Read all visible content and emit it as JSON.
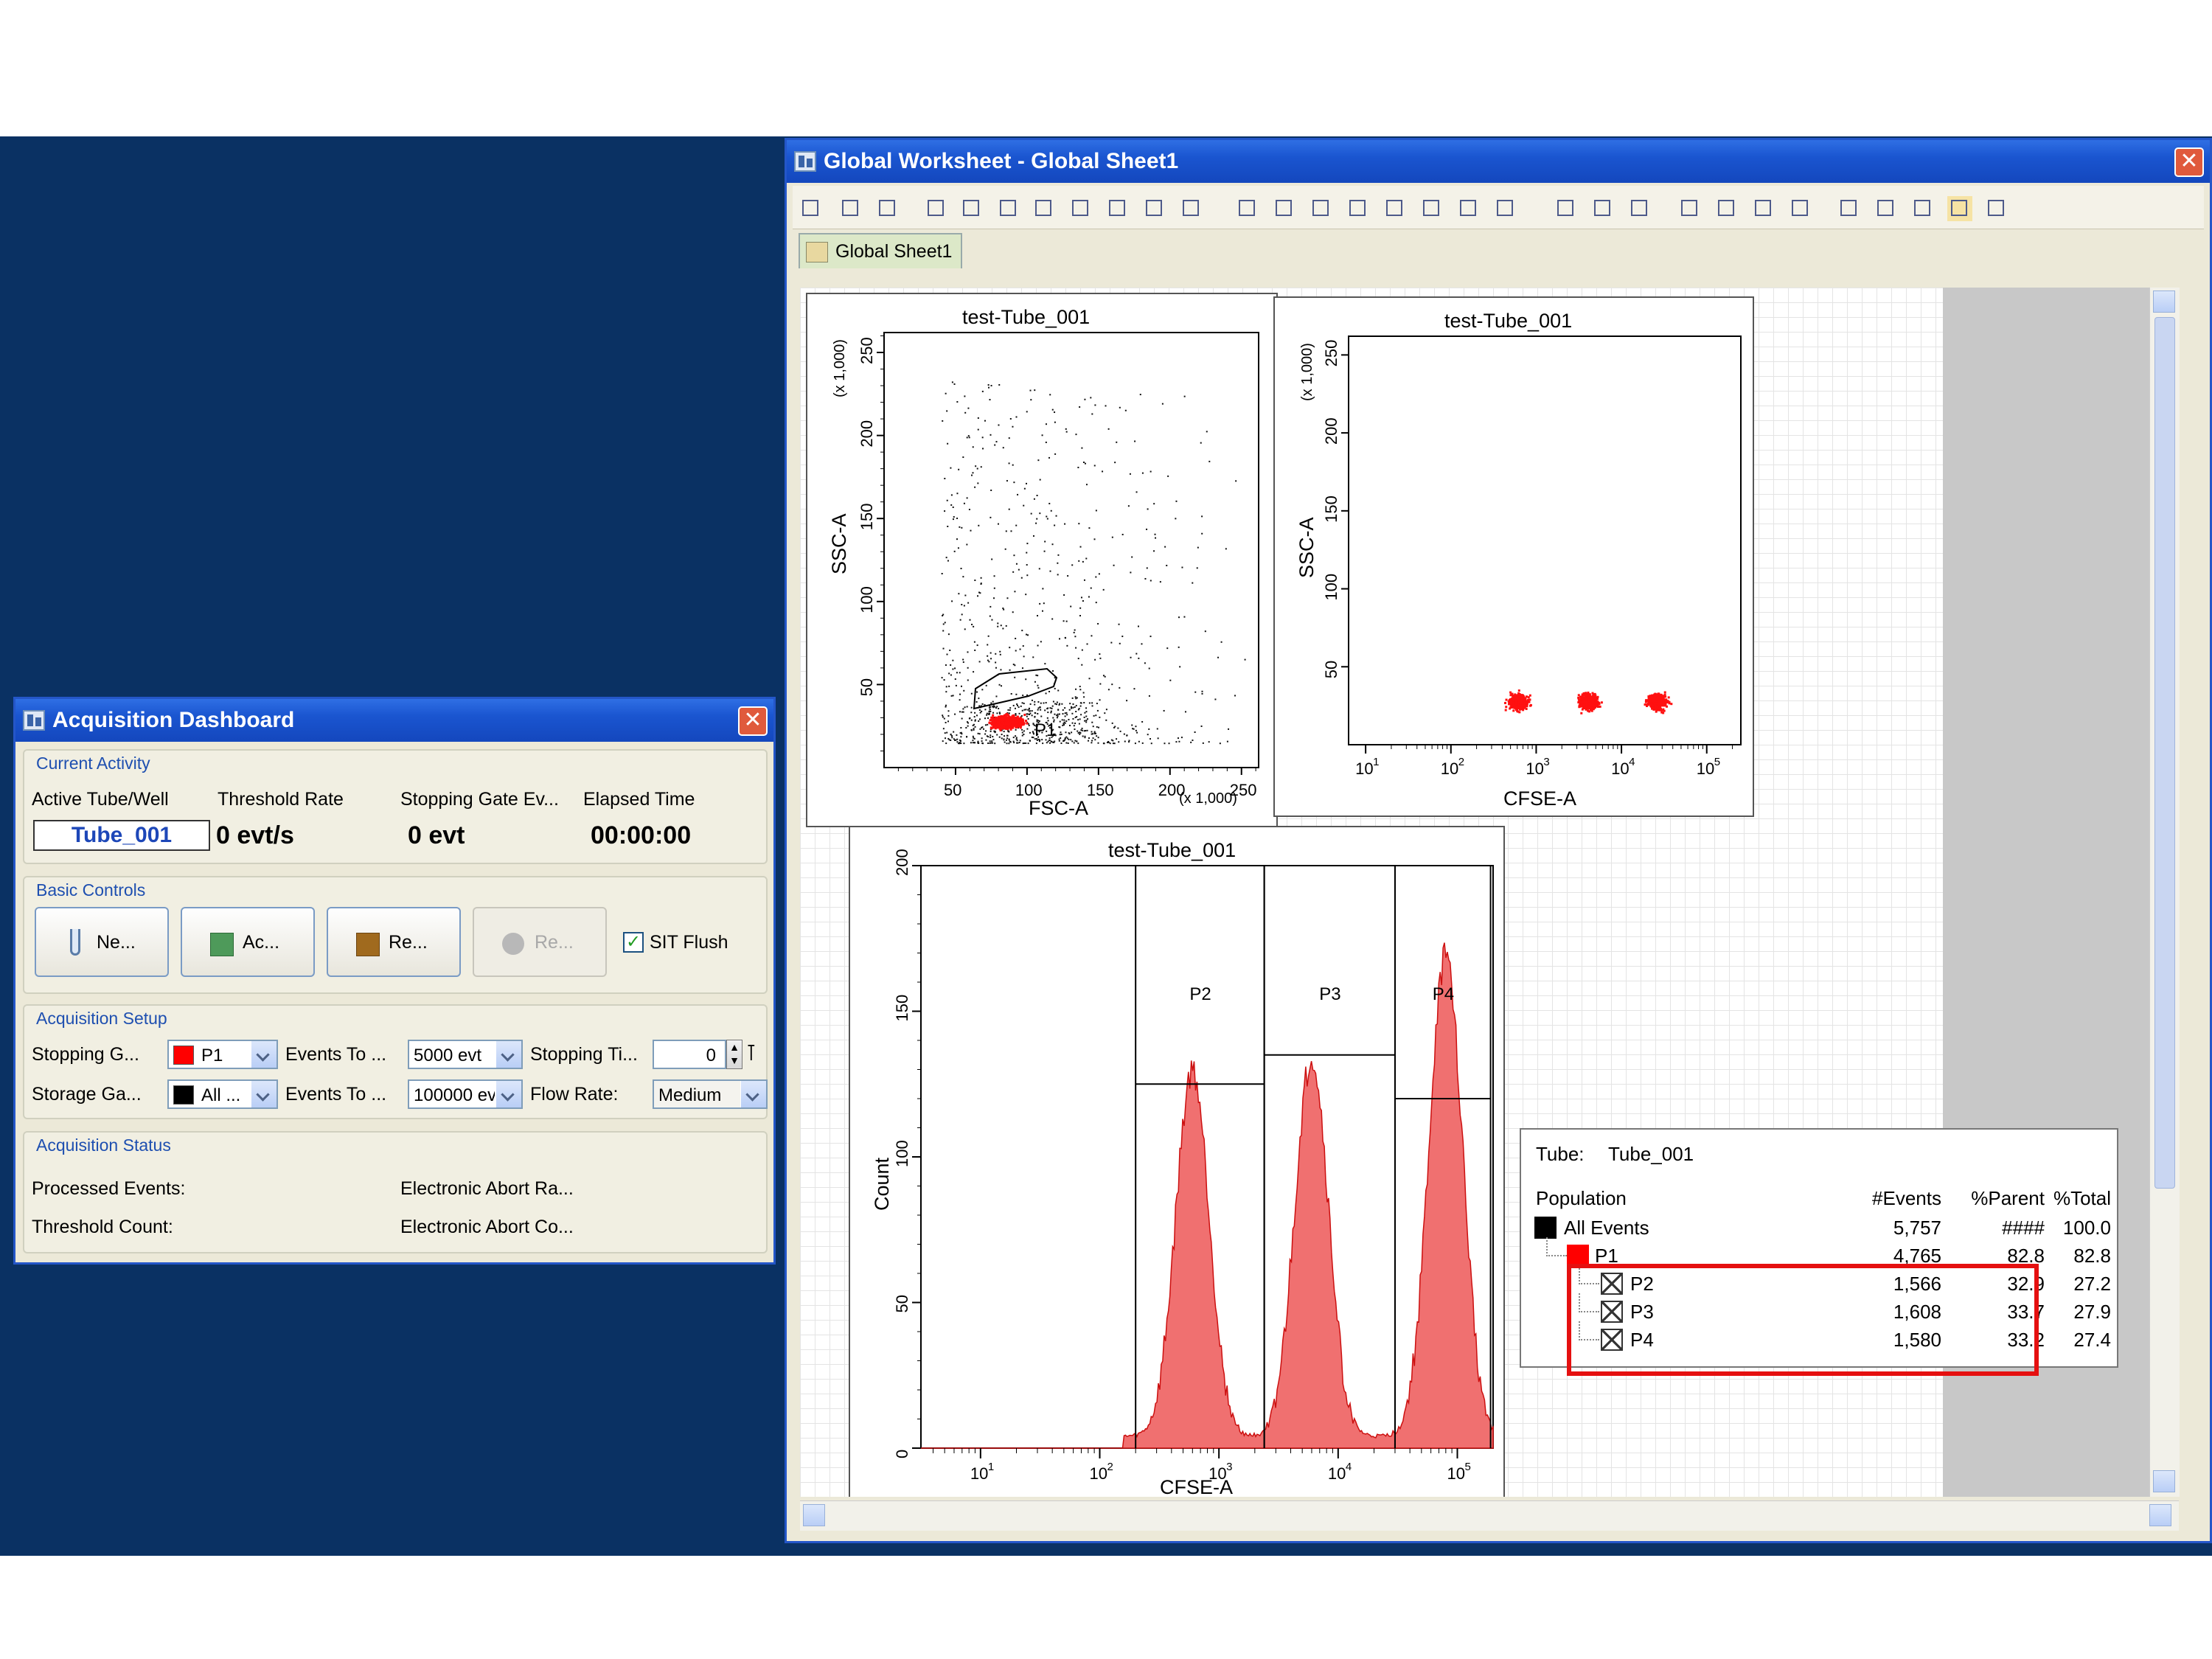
{
  "worksheet": {
    "title": "Global Worksheet - Global Sheet1",
    "tab_label": "Global Sheet1"
  },
  "plot1": {
    "title": "test-Tube_001",
    "xlabel": "FSC-A",
    "ylabel": "SSC-A",
    "x_multiplier": "(x 1,000)",
    "y_multiplier": "(x 1,000)",
    "x_ticks": [
      "50",
      "100",
      "150",
      "200",
      "250"
    ],
    "y_ticks": [
      "50",
      "100",
      "150",
      "200",
      "250"
    ],
    "gate_label": "P1"
  },
  "plot2": {
    "title": "test-Tube_001",
    "xlabel": "CFSE-A",
    "ylabel": "SSC-A",
    "y_multiplier": "(x 1,000)",
    "x_ticks": [
      "10",
      "10",
      "10",
      "10",
      "10"
    ],
    "x_tick_exps": [
      "1",
      "2",
      "3",
      "4",
      "5"
    ],
    "y_ticks": [
      "50",
      "100",
      "150",
      "200",
      "250"
    ]
  },
  "plot3": {
    "title": "test-Tube_001",
    "xlabel": "CFSE-A",
    "ylabel": "Count",
    "x_ticks": [
      "10",
      "10",
      "10",
      "10",
      "10"
    ],
    "x_tick_exps": [
      "1",
      "2",
      "3",
      "4",
      "5"
    ],
    "y_ticks": [
      "0",
      "50",
      "100",
      "150",
      "200"
    ],
    "gates": [
      "P2",
      "P3",
      "P4"
    ]
  },
  "chart_data": [
    {
      "type": "scatter",
      "title": "test-Tube_001",
      "xlabel": "FSC-A",
      "ylabel": "SSC-A",
      "xlim": [
        0,
        262
      ],
      "ylim": [
        0,
        262
      ],
      "gate": "P1",
      "gate_center": [
        85,
        28
      ]
    },
    {
      "type": "scatter",
      "title": "test-Tube_001",
      "xlabel": "CFSE-A",
      "ylabel": "SSC-A",
      "x_scale": "log",
      "ylim": [
        0,
        262
      ],
      "clusters_x": [
        600,
        4000,
        25000
      ],
      "cluster_y": 28
    },
    {
      "type": "histogram",
      "title": "test-Tube_001",
      "xlabel": "CFSE-A",
      "ylabel": "Count",
      "x_scale": "log",
      "ylim": [
        0,
        200
      ],
      "peaks": [
        {
          "gate": "P2",
          "x": 600,
          "count": 125
        },
        {
          "gate": "P3",
          "x": 6000,
          "count": 130
        },
        {
          "gate": "P4",
          "x": 80000,
          "count": 165
        }
      ]
    }
  ],
  "stats": {
    "tube_label": "Tube:",
    "tube_name": "Tube_001",
    "headers": [
      "Population",
      "#Events",
      "%Parent",
      "%Total"
    ],
    "rows": [
      {
        "name": "All Events",
        "events": "5,757",
        "parent": "####",
        "total": "100.0",
        "color": "#000000"
      },
      {
        "name": "P1",
        "events": "4,765",
        "parent": "82.8",
        "total": "82.8",
        "color": "#ff0000"
      },
      {
        "name": "P2",
        "events": "1,566",
        "parent": "32.9",
        "total": "27.2",
        "color": ""
      },
      {
        "name": "P3",
        "events": "1,608",
        "parent": "33.7",
        "total": "27.9",
        "color": ""
      },
      {
        "name": "P4",
        "events": "1,580",
        "parent": "33.2",
        "total": "27.4",
        "color": ""
      }
    ]
  },
  "dashboard": {
    "title": "Acquisition Dashboard",
    "current_activity": {
      "label": "Current Activity",
      "col_labels": [
        "Active Tube/Well",
        "Threshold Rate",
        "Stopping Gate Ev...",
        "Elapsed Time"
      ],
      "active_tube": "Tube_001",
      "threshold_rate": "0 evt/s",
      "stopping_gate_events": "0 evt",
      "elapsed_time": "00:00:00"
    },
    "basic_controls": {
      "label": "Basic Controls",
      "buttons": [
        "Ne...",
        "Ac...",
        "Re...",
        "Re..."
      ],
      "sit_flush": "SIT Flush"
    },
    "acquisition_setup": {
      "label": "Acquisition Setup",
      "stopping_gate_label": "Stopping G...",
      "stopping_gate_value": "P1",
      "events_to_record_label": "Events To ...",
      "events_to_record_value": "5000 evt",
      "stopping_time_label": "Stopping Ti...",
      "stopping_time_value": "0",
      "storage_gate_label": "Storage Ga...",
      "storage_gate_value": "All ...",
      "events_to_display_label": "Events To ...",
      "events_to_display_value": "100000 ev",
      "flow_rate_label": "Flow Rate:",
      "flow_rate_value": "Medium"
    },
    "acquisition_status": {
      "label": "Acquisition Status",
      "processed_events": "Processed Events:",
      "threshold_count": "Threshold Count:",
      "abort_rate": "Electronic Abort Ra...",
      "abort_count": "Electronic Abort Co..."
    }
  }
}
